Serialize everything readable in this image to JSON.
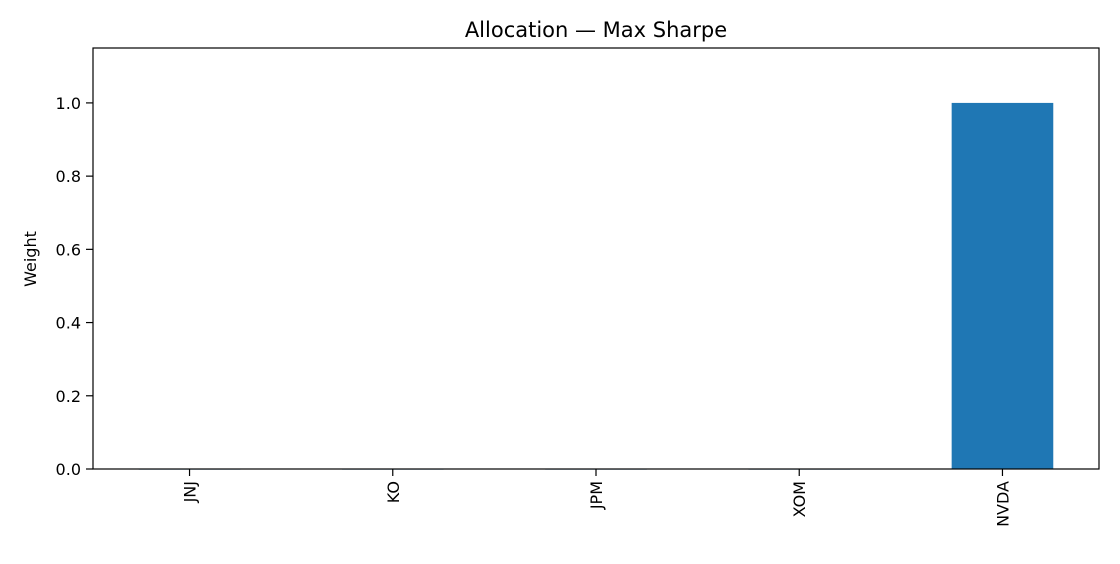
{
  "chart_data": {
    "type": "bar",
    "title": "Allocation — Max Sharpe",
    "xlabel": "",
    "ylabel": "Weight",
    "categories": [
      "JNJ",
      "KO",
      "JPM",
      "XOM",
      "NVDA"
    ],
    "values": [
      0.0,
      0.0,
      0.0,
      0.0,
      1.0
    ],
    "ylim": [
      0,
      1.15
    ],
    "yticks": [
      0.0,
      0.2,
      0.4,
      0.6,
      0.8,
      1.0
    ],
    "ytick_labels": [
      "0.0",
      "0.2",
      "0.4",
      "0.6",
      "0.8",
      "1.0"
    ],
    "xtick_rotation": "vertical",
    "grid": false,
    "legend": "none",
    "bar_color": "#1f77b4"
  }
}
